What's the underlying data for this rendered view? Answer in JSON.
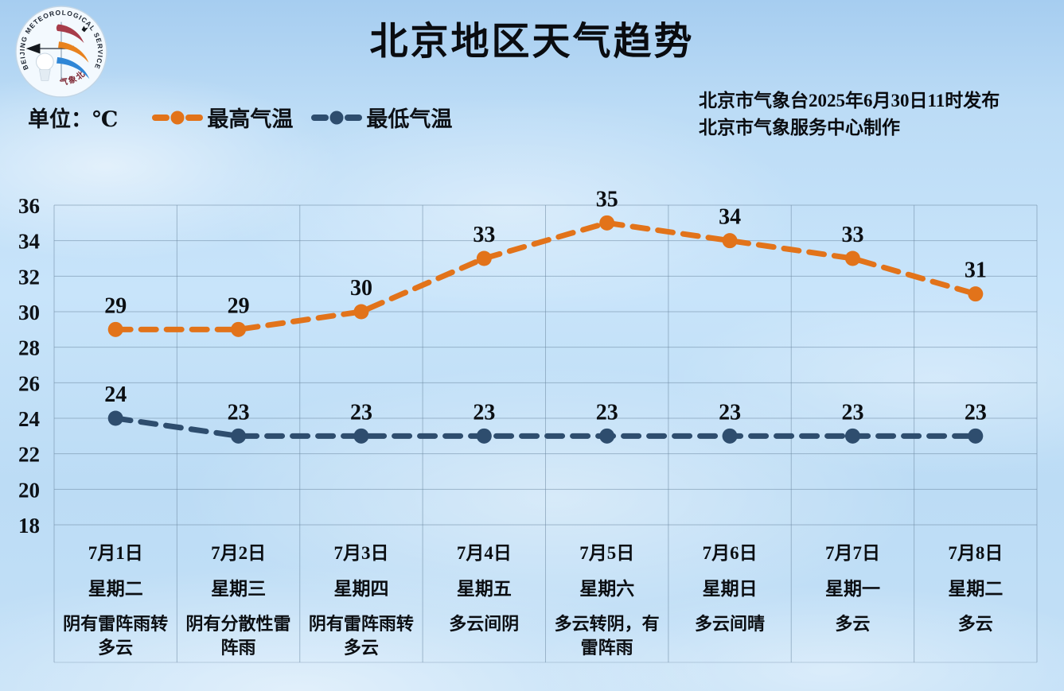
{
  "header": {
    "title": "北京地区天气趋势",
    "logo": {
      "ring_text": "BEIJING METEOROLOGICAL SERVICE",
      "cn_text": "气象北京"
    }
  },
  "meta": {
    "unit_label": "单位：℃",
    "legend": [
      {
        "label": "最高气温"
      },
      {
        "label": "最低气温"
      }
    ],
    "source_line1": "北京市气象台2025年6月30日11时发布",
    "source_line2": "北京市气象服务中心制作"
  },
  "chart_data": {
    "type": "line",
    "line_style": "dashed",
    "grid": true,
    "ylim": [
      18,
      36
    ],
    "ytick_step": 2,
    "x": [
      {
        "date": "7月1日",
        "weekday": "星期二",
        "weather": "阴有雷阵雨转多云"
      },
      {
        "date": "7月2日",
        "weekday": "星期三",
        "weather": "阴有分散性雷阵雨"
      },
      {
        "date": "7月3日",
        "weekday": "星期四",
        "weather": "阴有雷阵雨转多云"
      },
      {
        "date": "7月4日",
        "weekday": "星期五",
        "weather": "多云间阴"
      },
      {
        "date": "7月5日",
        "weekday": "星期六",
        "weather": "多云转阴，有雷阵雨"
      },
      {
        "date": "7月6日",
        "weekday": "星期日",
        "weather": "多云间晴"
      },
      {
        "date": "7月7日",
        "weekday": "星期一",
        "weather": "多云"
      },
      {
        "date": "7月8日",
        "weekday": "星期二",
        "weather": "多云"
      }
    ],
    "series": [
      {
        "name": "最高气温",
        "color": "#e2731a",
        "values": [
          29,
          29,
          30,
          33,
          35,
          34,
          33,
          31
        ]
      },
      {
        "name": "最低气温",
        "color": "#2e4d6e",
        "values": [
          24,
          23,
          23,
          23,
          23,
          23,
          23,
          23
        ]
      }
    ]
  }
}
